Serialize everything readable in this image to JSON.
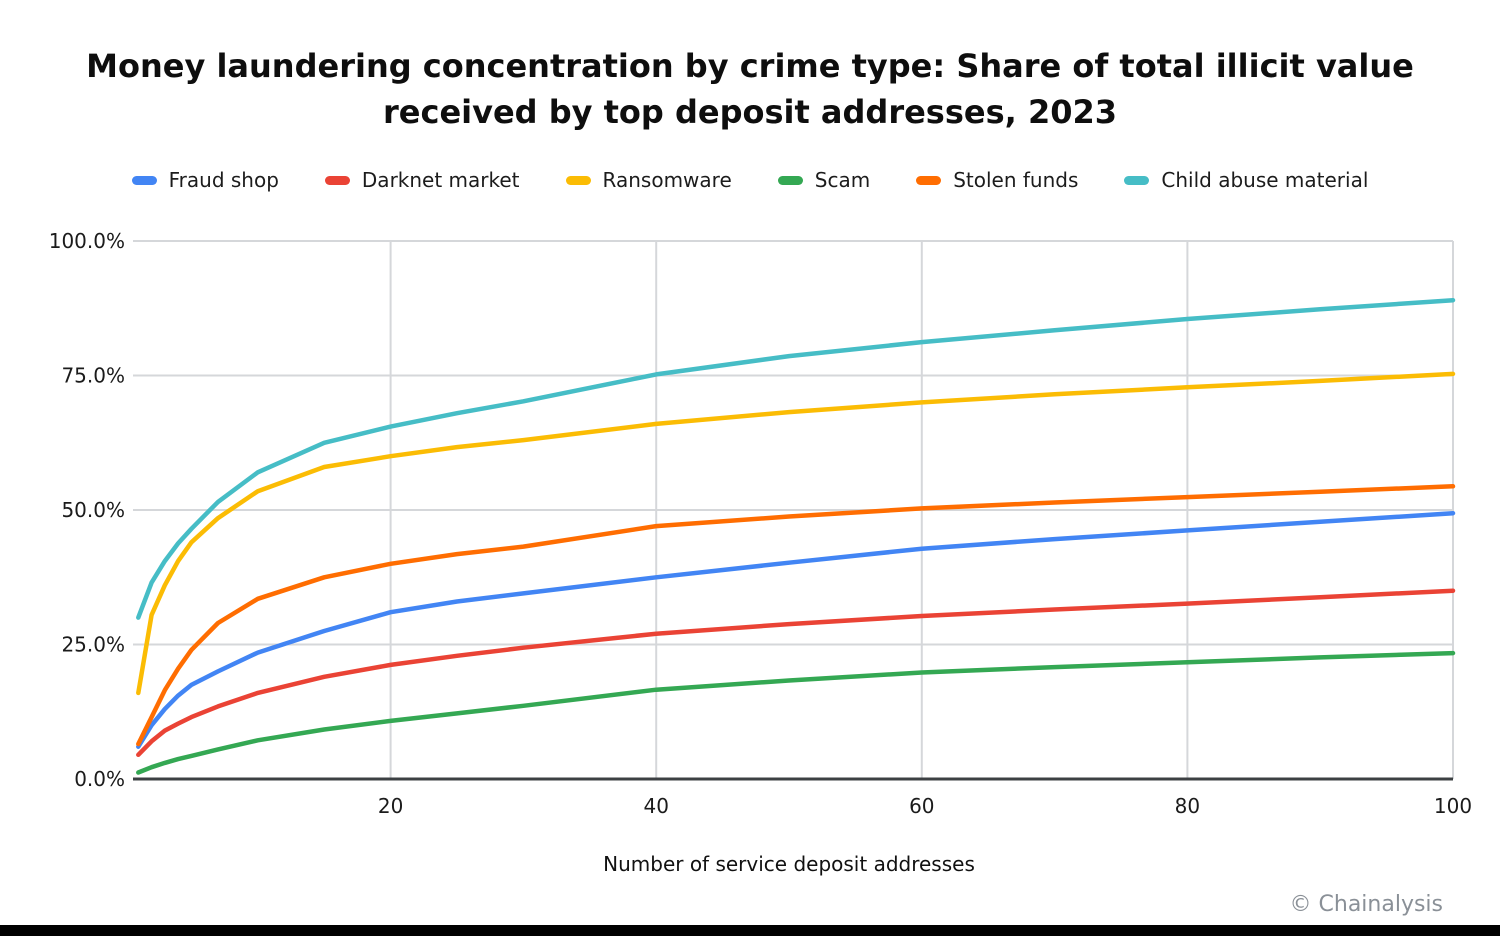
{
  "chart_data": {
    "type": "line",
    "title": "Money laundering concentration by crime type: Share of total illicit value received by top deposit addresses, 2023",
    "xlabel": "Number of service deposit addresses",
    "ylabel": "",
    "xlim": [
      0,
      100
    ],
    "ylim": [
      0,
      100
    ],
    "grid": true,
    "legend_position": "top",
    "x_tick_values": [
      20,
      40,
      60,
      80,
      100
    ],
    "x_tick_labels": [
      "20",
      "40",
      "60",
      "80",
      "100"
    ],
    "y_tick_values": [
      0,
      25,
      50,
      75,
      100
    ],
    "y_tick_labels": [
      "0.0%",
      "25.0%",
      "50.0%",
      "75.0%",
      "100.0%"
    ],
    "x": [
      1,
      2,
      3,
      4,
      5,
      7,
      10,
      15,
      20,
      25,
      30,
      40,
      50,
      60,
      70,
      80,
      90,
      100
    ],
    "series": [
      {
        "name": "Fraud shop",
        "color": "#4285F4",
        "values": [
          6.0,
          10.0,
          13.0,
          15.5,
          17.5,
          20.0,
          23.5,
          27.5,
          31.0,
          33.0,
          34.5,
          37.5,
          40.2,
          42.8,
          44.6,
          46.2,
          47.8,
          49.4
        ]
      },
      {
        "name": "Darknet market",
        "color": "#EA4335",
        "values": [
          4.5,
          7.0,
          9.0,
          10.3,
          11.5,
          13.5,
          16.0,
          19.0,
          21.2,
          22.9,
          24.4,
          27.0,
          28.8,
          30.3,
          31.5,
          32.6,
          33.8,
          35.0
        ]
      },
      {
        "name": "Ransomware",
        "color": "#FBBC04",
        "values": [
          16.0,
          30.5,
          36.0,
          40.5,
          44.0,
          48.5,
          53.5,
          58.0,
          60.0,
          61.7,
          63.0,
          66.0,
          68.2,
          70.0,
          71.5,
          72.8,
          74.0,
          75.3
        ]
      },
      {
        "name": "Scam",
        "color": "#34A853",
        "values": [
          1.2,
          2.2,
          3.0,
          3.7,
          4.3,
          5.5,
          7.2,
          9.2,
          10.8,
          12.2,
          13.6,
          16.6,
          18.3,
          19.8,
          20.8,
          21.7,
          22.6,
          23.4
        ]
      },
      {
        "name": "Stolen funds",
        "color": "#FF6D01",
        "values": [
          6.5,
          11.5,
          16.5,
          20.5,
          24.0,
          29.0,
          33.5,
          37.5,
          40.0,
          41.8,
          43.2,
          47.0,
          48.8,
          50.3,
          51.4,
          52.4,
          53.4,
          54.4
        ]
      },
      {
        "name": "Child abuse material",
        "color": "#46BDC6",
        "values": [
          30.0,
          36.5,
          40.5,
          43.8,
          46.5,
          51.5,
          57.0,
          62.5,
          65.5,
          68.0,
          70.2,
          75.2,
          78.6,
          81.2,
          83.4,
          85.5,
          87.3,
          89.0
        ]
      }
    ]
  },
  "footer": {
    "attribution": "© Chainalysis"
  },
  "style_colors": {
    "gridline": "#d5d7da",
    "axis_line": "#3c4043",
    "tick_text": "#1b1b1b",
    "title_text": "#0e0e0e",
    "attribution_text": "#8a9097",
    "footer_bar": "#000000",
    "background": "#ffffff"
  }
}
